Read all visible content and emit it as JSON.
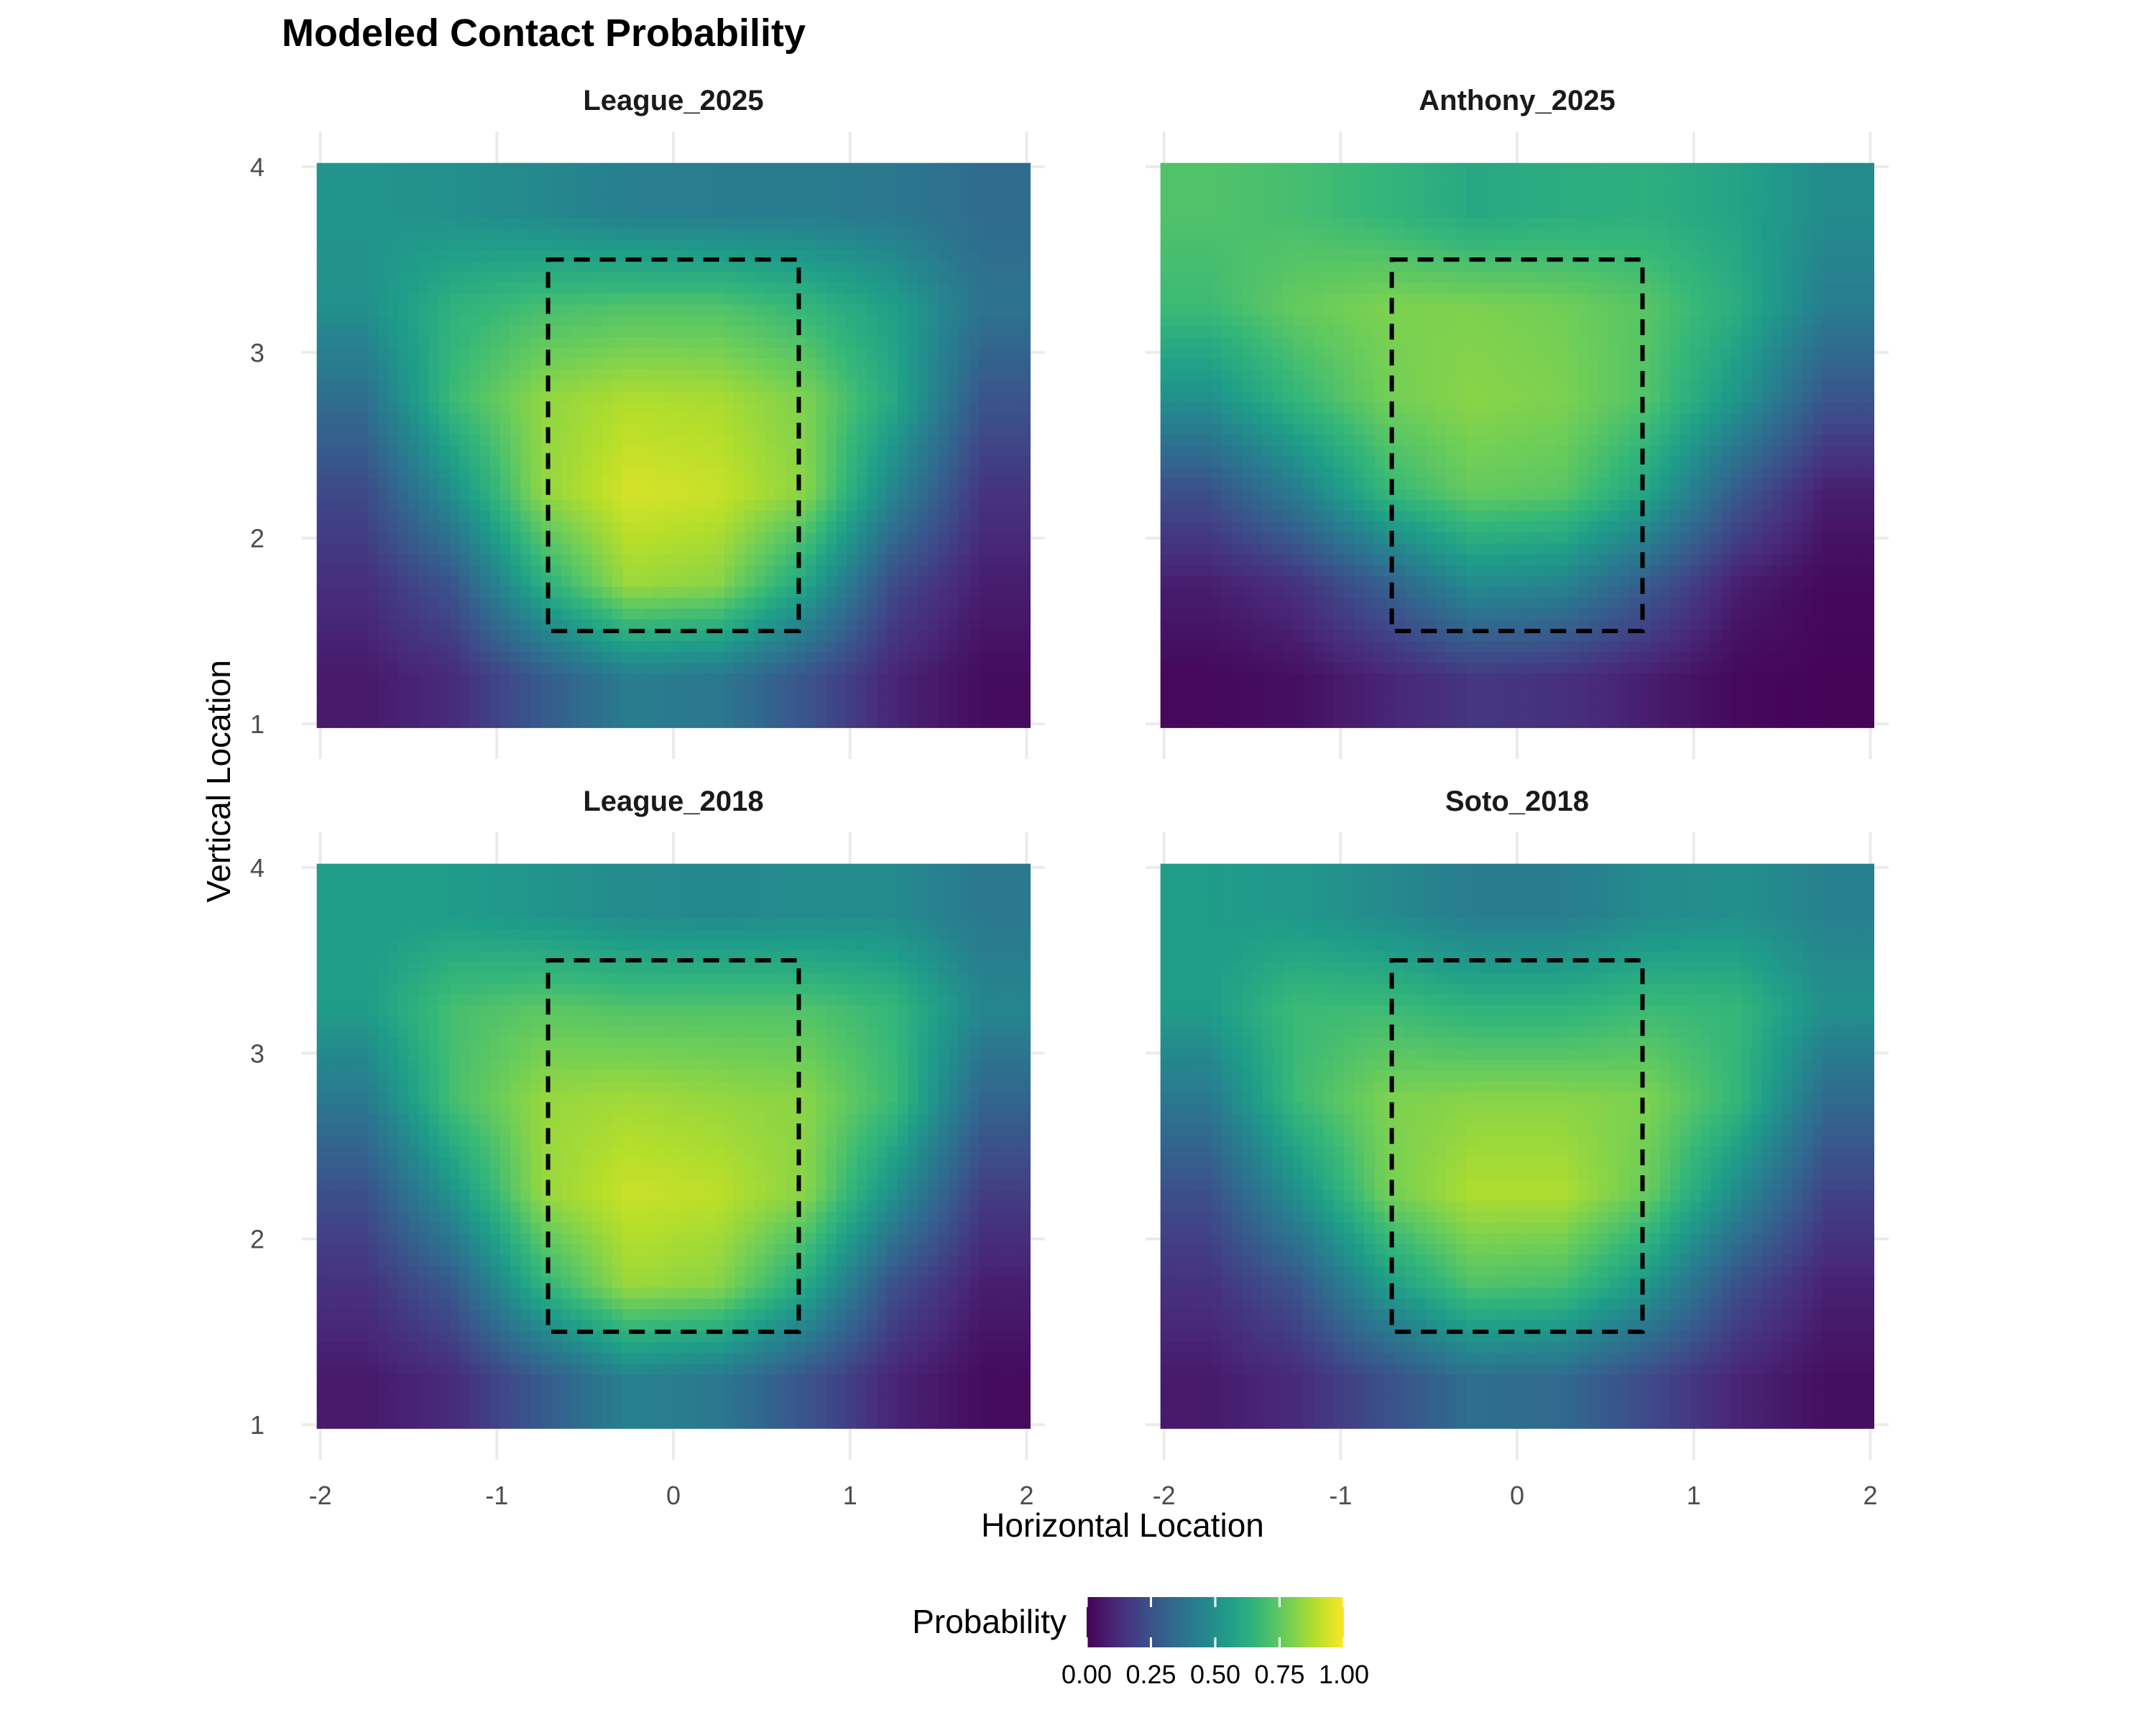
{
  "chart_data": {
    "type": "heatmap",
    "title": "Modeled Contact Probability",
    "xlabel": "Horizontal Location",
    "ylabel": "Vertical Location",
    "xlim": [
      -2,
      2
    ],
    "ylim": [
      1,
      4
    ],
    "x_ticks": [
      "-2",
      "-1",
      "0",
      "1",
      "2"
    ],
    "y_ticks": [
      "1",
      "2",
      "3",
      "4"
    ],
    "strike_zone": {
      "x": [
        -0.71,
        0.71
      ],
      "y": [
        1.5,
        3.5
      ],
      "line": "dashed",
      "color": "#000000"
    },
    "colorscale": "viridis",
    "legend": {
      "title": "Probability",
      "position": "bottom",
      "ticks": [
        "0.00",
        "0.25",
        "0.50",
        "0.75",
        "1.00"
      ],
      "range": [
        0,
        1
      ]
    },
    "grid": true,
    "panels": [
      {
        "name": "League_2025",
        "x": [
          -1.75,
          -1.25,
          -0.75,
          -0.25,
          0.25,
          0.75,
          1.25,
          1.75
        ],
        "y": [
          3.75,
          3.25,
          2.75,
          2.25,
          1.75,
          1.25
        ],
        "z": [
          [
            0.52,
            0.5,
            0.47,
            0.43,
            0.42,
            0.42,
            0.4,
            0.35
          ],
          [
            0.5,
            0.64,
            0.7,
            0.72,
            0.72,
            0.66,
            0.56,
            0.38
          ],
          [
            0.36,
            0.68,
            0.83,
            0.88,
            0.87,
            0.8,
            0.6,
            0.26
          ],
          [
            0.22,
            0.5,
            0.83,
            0.94,
            0.92,
            0.82,
            0.45,
            0.15
          ],
          [
            0.13,
            0.26,
            0.62,
            0.85,
            0.82,
            0.58,
            0.22,
            0.08
          ],
          [
            0.07,
            0.12,
            0.28,
            0.42,
            0.4,
            0.26,
            0.1,
            0.03
          ]
        ]
      },
      {
        "name": "Anthony_2025",
        "x": [
          -1.75,
          -1.25,
          -0.75,
          -0.25,
          0.25,
          0.75,
          1.25,
          1.75
        ],
        "y": [
          3.75,
          3.25,
          2.75,
          2.25,
          1.75,
          1.25
        ],
        "z": [
          [
            0.72,
            0.7,
            0.66,
            0.6,
            0.62,
            0.63,
            0.58,
            0.48
          ],
          [
            0.68,
            0.76,
            0.8,
            0.8,
            0.78,
            0.73,
            0.62,
            0.42
          ],
          [
            0.5,
            0.66,
            0.78,
            0.82,
            0.8,
            0.72,
            0.52,
            0.26
          ],
          [
            0.24,
            0.42,
            0.66,
            0.76,
            0.74,
            0.58,
            0.28,
            0.08
          ],
          [
            0.08,
            0.14,
            0.3,
            0.48,
            0.45,
            0.28,
            0.08,
            0.02
          ],
          [
            0.02,
            0.04,
            0.1,
            0.16,
            0.14,
            0.08,
            0.02,
            0.01
          ]
        ]
      },
      {
        "name": "League_2018",
        "x": [
          -1.75,
          -1.25,
          -0.75,
          -0.25,
          0.25,
          0.75,
          1.25,
          1.75
        ],
        "y": [
          3.75,
          3.25,
          2.75,
          2.25,
          1.75,
          1.25
        ],
        "z": [
          [
            0.55,
            0.55,
            0.52,
            0.48,
            0.47,
            0.48,
            0.48,
            0.4
          ],
          [
            0.55,
            0.7,
            0.74,
            0.72,
            0.72,
            0.72,
            0.66,
            0.46
          ],
          [
            0.4,
            0.7,
            0.84,
            0.86,
            0.84,
            0.82,
            0.68,
            0.32
          ],
          [
            0.24,
            0.52,
            0.84,
            0.92,
            0.9,
            0.82,
            0.5,
            0.18
          ],
          [
            0.14,
            0.28,
            0.64,
            0.85,
            0.82,
            0.6,
            0.24,
            0.08
          ],
          [
            0.07,
            0.12,
            0.28,
            0.44,
            0.4,
            0.26,
            0.1,
            0.03
          ]
        ]
      },
      {
        "name": "Soto_2018",
        "x": [
          -1.75,
          -1.25,
          -0.75,
          -0.25,
          0.25,
          0.75,
          1.25,
          1.75
        ],
        "y": [
          3.75,
          3.25,
          2.75,
          2.25,
          1.75,
          1.25
        ],
        "z": [
          [
            0.55,
            0.53,
            0.48,
            0.42,
            0.42,
            0.48,
            0.5,
            0.44
          ],
          [
            0.55,
            0.68,
            0.68,
            0.64,
            0.64,
            0.68,
            0.66,
            0.5
          ],
          [
            0.4,
            0.68,
            0.8,
            0.82,
            0.82,
            0.8,
            0.66,
            0.34
          ],
          [
            0.24,
            0.5,
            0.78,
            0.88,
            0.88,
            0.76,
            0.48,
            0.2
          ],
          [
            0.14,
            0.26,
            0.54,
            0.72,
            0.7,
            0.52,
            0.24,
            0.09
          ],
          [
            0.07,
            0.12,
            0.24,
            0.36,
            0.34,
            0.22,
            0.1,
            0.04
          ]
        ]
      }
    ]
  }
}
